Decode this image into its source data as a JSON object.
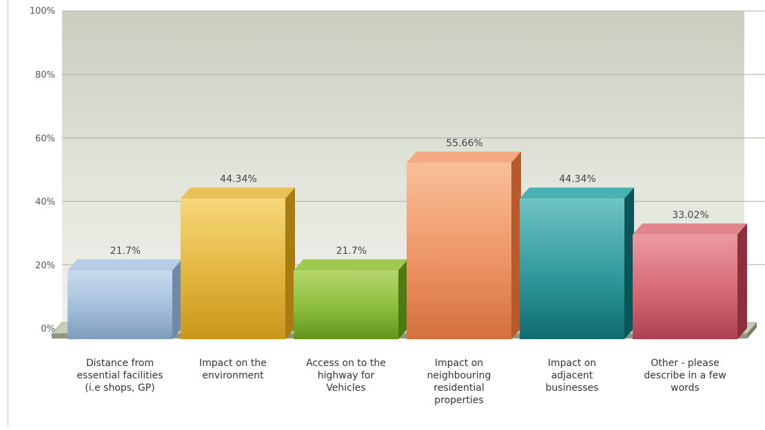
{
  "chart_data": {
    "type": "bar",
    "categories": [
      "Distance from\nessential facilities\n(i.e shops, GP)",
      "Impact on the\nenvironment",
      "Access on to the\nhighway for\nVehicles",
      "Impact on\nneighbouring\nresidential\nproperties",
      "Impact on\nadjacent\nbusinesses",
      "Other - please\ndescribe in a few\nwords"
    ],
    "values": [
      21.7,
      44.34,
      21.7,
      55.66,
      44.34,
      33.02
    ],
    "value_labels": [
      "21.7%",
      "44.34%",
      "21.7%",
      "55.66%",
      "44.34%",
      "33.02%"
    ],
    "y_ticks": [
      "0%",
      "20%",
      "40%",
      "60%",
      "80%",
      "100%"
    ],
    "ylim": [
      0,
      100
    ],
    "grid": true,
    "style": "3d",
    "colors": [
      {
        "light": "#c9dcef",
        "mid": "#a3bedb",
        "dark": "#7e9cbd",
        "side": "#6f8aa8",
        "top": "#b6cde6"
      },
      {
        "light": "#f6d77a",
        "mid": "#e2b53e",
        "dark": "#c9961a",
        "side": "#a97c12",
        "top": "#eac259"
      },
      {
        "light": "#b5d66c",
        "mid": "#8bbd3c",
        "dark": "#62941c",
        "side": "#4d7a13",
        "top": "#9fca50"
      },
      {
        "light": "#f8bf98",
        "mid": "#ee9566",
        "dark": "#d4703c",
        "side": "#b75a2c",
        "top": "#f3a982"
      },
      {
        "light": "#6fc3c3",
        "mid": "#2f9a9c",
        "dark": "#0f6b6e",
        "side": "#0b5558",
        "top": "#4ab0b2"
      },
      {
        "light": "#eb9aa2",
        "mid": "#d56a74",
        "dark": "#ad4150",
        "side": "#8e2f3c",
        "top": "#e2848c"
      }
    ]
  }
}
